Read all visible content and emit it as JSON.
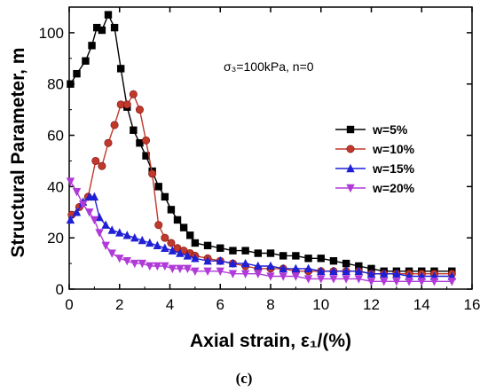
{
  "chart_data": {
    "type": "line",
    "xlabel": "Axial strain, ε₁/(%)",
    "ylabel": "Structural Parameter, m",
    "annotation": "σ₃=100kPa, n=0",
    "caption": "(c)",
    "xlim": [
      0,
      16
    ],
    "ylim": [
      0,
      110
    ],
    "xticks": [
      "0",
      "2",
      "4",
      "6",
      "8",
      "10",
      "12",
      "14",
      "16"
    ],
    "yticks": [
      "0",
      "20",
      "40",
      "60",
      "80",
      "100"
    ],
    "legend_position": "right-middle",
    "series": [
      {
        "name": "w=5%",
        "color": "#000000",
        "marker": "square",
        "x": [
          0.05,
          0.3,
          0.65,
          0.9,
          1.1,
          1.3,
          1.55,
          1.8,
          2.05,
          2.3,
          2.55,
          2.8,
          3.05,
          3.3,
          3.55,
          3.8,
          4.05,
          4.3,
          4.55,
          4.8,
          5.0,
          5.5,
          6.0,
          6.5,
          7.0,
          7.5,
          8.0,
          8.5,
          9.0,
          9.5,
          10.0,
          10.5,
          11.0,
          11.5,
          12.0,
          12.5,
          13.0,
          13.5,
          14.0,
          14.5,
          15.2
        ],
        "y": [
          80,
          84,
          89,
          95,
          102,
          101,
          107,
          102,
          86,
          71,
          62,
          57,
          52,
          46,
          40,
          36,
          31,
          27,
          24,
          21,
          18,
          17,
          16,
          15,
          15,
          14,
          14,
          13,
          13,
          12,
          12,
          11,
          10,
          9,
          8,
          7,
          7,
          7,
          7,
          7,
          7
        ]
      },
      {
        "name": "w=10%",
        "color": "#c0392b",
        "marker": "circle",
        "x": [
          0.1,
          0.4,
          0.75,
          1.05,
          1.3,
          1.55,
          1.8,
          2.05,
          2.3,
          2.55,
          2.8,
          3.05,
          3.3,
          3.55,
          3.8,
          4.05,
          4.3,
          4.55,
          4.8,
          5.0,
          5.5,
          6.0,
          6.5,
          7.0,
          7.5,
          8.0,
          8.5,
          9.0,
          9.5,
          10.0,
          10.5,
          11.0,
          11.5,
          12.0,
          12.5,
          13.0,
          13.5,
          14.0,
          14.5,
          15.2
        ],
        "y": [
          29,
          32,
          36,
          50,
          48,
          57,
          64,
          72,
          72,
          76,
          70,
          58,
          45,
          25,
          20,
          18,
          16,
          15,
          14,
          13,
          12,
          11,
          10,
          9,
          8,
          8,
          8,
          7,
          7,
          7,
          7,
          7,
          7,
          6,
          6,
          6,
          6,
          6,
          6,
          6
        ]
      },
      {
        "name": "w=15%",
        "color": "#1f1fd6",
        "marker": "triangle-up",
        "x": [
          0.05,
          0.3,
          0.55,
          0.8,
          1.0,
          1.2,
          1.45,
          1.7,
          2.0,
          2.3,
          2.6,
          2.9,
          3.2,
          3.5,
          3.8,
          4.1,
          4.4,
          4.7,
          5.0,
          5.5,
          6.0,
          6.5,
          7.0,
          7.5,
          8.0,
          8.5,
          9.0,
          9.5,
          10.0,
          10.5,
          11.0,
          11.5,
          12.0,
          12.5,
          13.0,
          13.5,
          14.0,
          14.5,
          15.2
        ],
        "y": [
          27,
          30,
          34,
          36,
          36,
          28,
          25,
          23,
          22,
          21,
          20,
          19,
          18,
          17,
          16,
          15,
          14,
          13,
          12,
          11,
          11,
          10,
          10,
          9,
          9,
          8,
          8,
          8,
          7,
          7,
          7,
          7,
          6,
          6,
          6,
          5,
          5,
          5,
          5
        ]
      },
      {
        "name": "w=20%",
        "color": "#b03ad8",
        "marker": "triangle-down",
        "x": [
          0.05,
          0.3,
          0.55,
          0.8,
          1.0,
          1.2,
          1.45,
          1.7,
          2.0,
          2.3,
          2.6,
          2.9,
          3.2,
          3.5,
          3.8,
          4.1,
          4.4,
          4.7,
          5.0,
          5.5,
          6.0,
          6.5,
          7.0,
          7.5,
          8.0,
          8.5,
          9.0,
          9.5,
          10.0,
          10.5,
          11.0,
          11.5,
          12.0,
          12.5,
          13.0,
          13.5,
          14.0,
          14.5,
          15.2
        ],
        "y": [
          42,
          38,
          33,
          30,
          27,
          22,
          17,
          14,
          12,
          11,
          10,
          10,
          9,
          9,
          9,
          8,
          8,
          8,
          7,
          7,
          7,
          6,
          6,
          6,
          5,
          5,
          5,
          4,
          4,
          4,
          4,
          4,
          3,
          3,
          3,
          3,
          3,
          3,
          3
        ]
      }
    ]
  }
}
